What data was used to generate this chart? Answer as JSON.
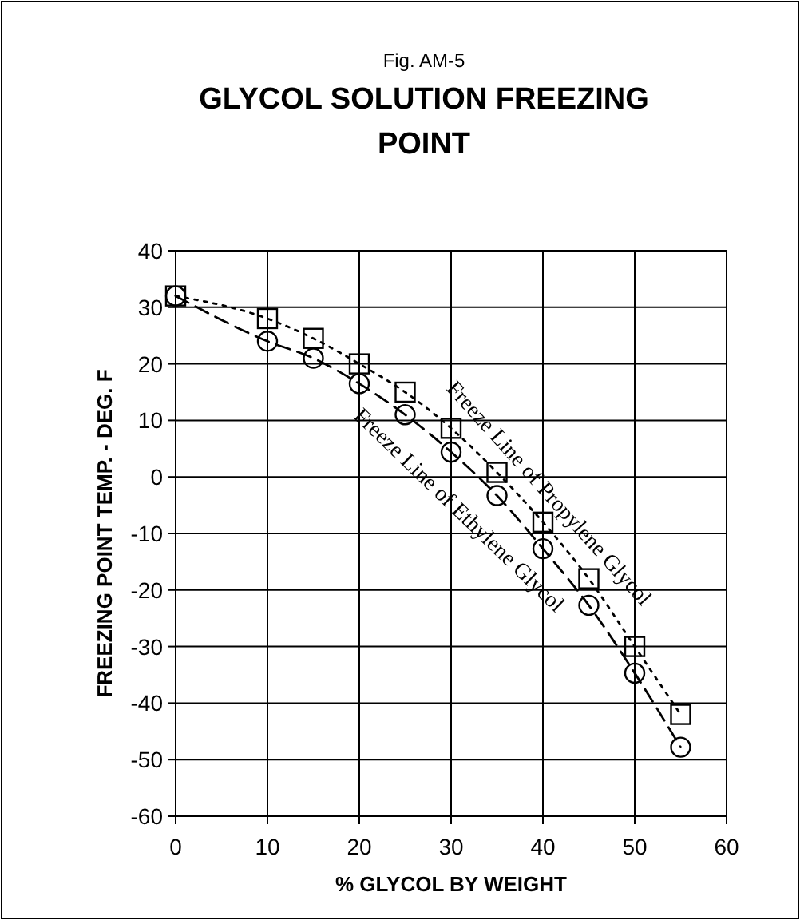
{
  "chart_data": {
    "type": "line",
    "title": "GLYCOL SOLUTION FREEZING POINT",
    "annotations": [
      "Fig. AM-5"
    ],
    "xlabel": "% GLYCOL BY WEIGHT",
    "ylabel": "FREEZING POINT TEMP. - DEG. F",
    "x": [
      0,
      10,
      15,
      20,
      25,
      30,
      35,
      40,
      45,
      50,
      55
    ],
    "series": [
      {
        "name": "Freeze Line of Propylene Glycol",
        "color": "#000000",
        "marker": "square",
        "line_style": "dotted",
        "values": [
          32,
          28,
          24.5,
          20,
          15,
          8.6,
          0.8,
          -8,
          -18,
          -30,
          -42
        ]
      },
      {
        "name": "Freeze Line of Ethylene Glycol",
        "color": "#000000",
        "marker": "circle",
        "line_style": "dashed",
        "values": [
          32,
          24,
          21,
          16.5,
          11,
          4.4,
          -3.3,
          -12.7,
          -22.7,
          -34.7,
          -47.8
        ]
      }
    ],
    "xlim": [
      0,
      60
    ],
    "xticks": [
      0,
      10,
      20,
      30,
      40,
      50,
      60
    ],
    "ylim": [
      -60,
      40
    ],
    "yticks": [
      -60,
      -50,
      -40,
      -30,
      -20,
      -10,
      0,
      10,
      20,
      30,
      40
    ],
    "grid": true
  }
}
